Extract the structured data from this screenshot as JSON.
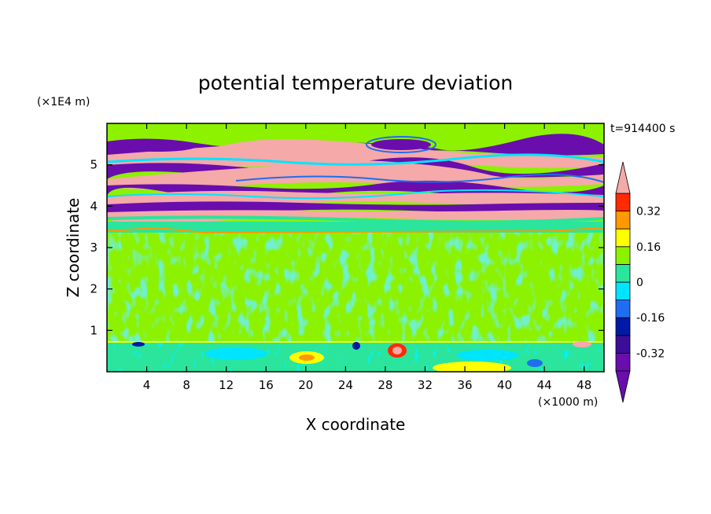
{
  "chart_data": {
    "type": "heatmap",
    "title": "potential temperature deviation",
    "xlabel": "X coordinate",
    "ylabel": "Z coordinate",
    "x_unit": "(×1000 m)",
    "y_unit": "(×1E4 m)",
    "time_label": "t=914400 s",
    "xlim": [
      0,
      50
    ],
    "ylim": [
      0,
      6
    ],
    "x_ticks": [
      4,
      8,
      12,
      16,
      20,
      24,
      28,
      32,
      36,
      40,
      44,
      48
    ],
    "y_ticks": [
      1,
      2,
      3,
      4,
      5
    ],
    "colorbar": {
      "levels": [
        -0.4,
        -0.32,
        -0.24,
        -0.16,
        -0.08,
        0,
        0.08,
        0.16,
        0.24,
        0.32,
        0.4
      ],
      "labels": [
        "0.32",
        "0.16",
        "0",
        "-0.16",
        "-0.32"
      ],
      "label_values": [
        0.32,
        0.16,
        0,
        -0.16,
        -0.32
      ],
      "colors": [
        "#6a0dad",
        "#3b0e99",
        "#001aa6",
        "#1f6df0",
        "#00e5ff",
        "#2ae59b",
        "#8cf200",
        "#ffff00",
        "#ff9900",
        "#ff2a00",
        "#f5a9a9"
      ],
      "extend": "both"
    },
    "regions": {
      "upper_alternating_layers": [
        3.5,
        6.0
      ],
      "mid_troposphere_near_zero": [
        0.8,
        3.5
      ],
      "boundary_layer_mixed": [
        0.0,
        0.8
      ]
    }
  }
}
